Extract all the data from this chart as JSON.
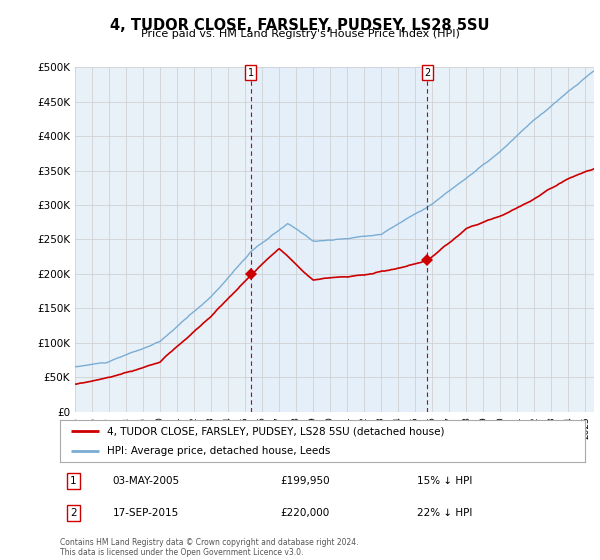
{
  "title": "4, TUDOR CLOSE, FARSLEY, PUDSEY, LS28 5SU",
  "subtitle": "Price paid vs. HM Land Registry's House Price Index (HPI)",
  "ylim": [
    0,
    500000
  ],
  "xlim_start": 1995.0,
  "xlim_end": 2025.5,
  "sale1_x": 2005.34,
  "sale1_y": 199950,
  "sale2_x": 2015.71,
  "sale2_y": 220000,
  "sale1_date": "03-MAY-2005",
  "sale1_price": "£199,950",
  "sale1_hpi": "15% ↓ HPI",
  "sale2_date": "17-SEP-2015",
  "sale2_price": "£220,000",
  "sale2_hpi": "22% ↓ HPI",
  "red_line_color": "#cc0000",
  "blue_line_color": "#7aadd4",
  "shade_color": "#ddeeff",
  "grid_color": "#cccccc",
  "background_color": "#ffffff",
  "plot_bg_color": "#e8f0f8",
  "legend_line1": "4, TUDOR CLOSE, FARSLEY, PUDSEY, LS28 5SU (detached house)",
  "legend_line2": "HPI: Average price, detached house, Leeds",
  "footer": "Contains HM Land Registry data © Crown copyright and database right 2024.\nThis data is licensed under the Open Government Licence v3.0."
}
